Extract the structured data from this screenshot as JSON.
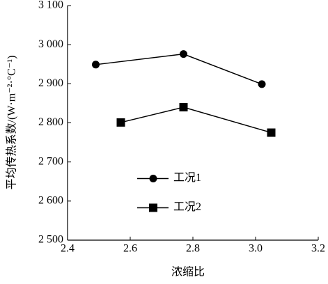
{
  "chart_data": {
    "type": "line",
    "xlabel": "浓缩比",
    "ylabel": "平均传热系数/(W·m⁻²·°C⁻¹)",
    "xlim": [
      2.4,
      3.2
    ],
    "xticks": [
      2.4,
      2.6,
      2.8,
      {
        "value": 3,
        "label": "3.0"
      },
      3.2
    ],
    "ylim": [
      2500,
      3100
    ],
    "yticks": [
      {
        "value": 2500,
        "label": "2 500"
      },
      {
        "value": 2600,
        "label": "2 600"
      },
      {
        "value": 2700,
        "label": "2 700"
      },
      {
        "value": 2800,
        "label": "2 800"
      },
      {
        "value": 2900,
        "label": "2 900"
      },
      {
        "value": 3000,
        "label": "3 000"
      },
      {
        "value": 3100,
        "label": "3 100"
      }
    ],
    "legend": "center",
    "series": [
      {
        "name": "工况1",
        "color": "#000000",
        "marker": "circle",
        "x": [
          2.49,
          2.77,
          3.02
        ],
        "values": [
          2949,
          2976,
          2899
        ]
      },
      {
        "name": "工况2",
        "color": "#000000",
        "marker": "square",
        "x": [
          2.57,
          2.77,
          3.05
        ],
        "values": [
          2801,
          2840,
          2775
        ]
      }
    ]
  }
}
